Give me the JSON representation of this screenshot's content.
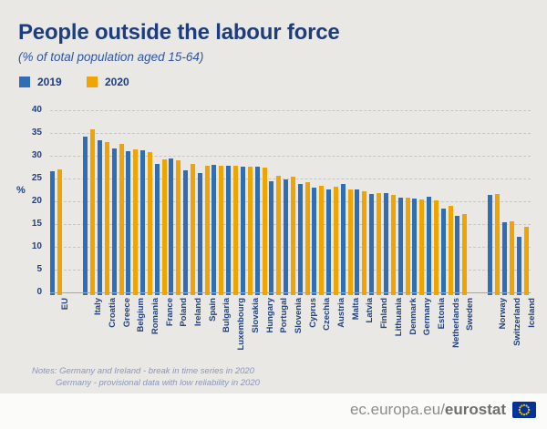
{
  "title": "People outside the labour force",
  "subtitle": "(% of total population aged 15-64)",
  "legend": [
    {
      "label": "2019",
      "color": "#2f6db5"
    },
    {
      "label": "2020",
      "color": "#f0a402"
    }
  ],
  "chart_data": {
    "type": "bar",
    "title": "People outside the labour force",
    "subtitle": "(% of total population aged 15-64)",
    "xlabel": "",
    "ylabel": "%",
    "ylim": [
      0,
      40
    ],
    "ytick_step": 5,
    "grid": "horizontal-dashed",
    "legend_position": "top-left",
    "categories": [
      "EU",
      "Italy",
      "Croatia",
      "Greece",
      "Belgium",
      "Romania",
      "France",
      "Poland",
      "Ireland",
      "Spain",
      "Bulgaria",
      "Luxembourg",
      "Slovakia",
      "Hungary",
      "Portugal",
      "Slovenia",
      "Cyprus",
      "Czechia",
      "Austria",
      "Malta",
      "Latvia",
      "Finland",
      "Lithuania",
      "Denmark",
      "Germany",
      "Estonia",
      "Netherlands",
      "Sweden",
      "Norway",
      "Switzerland",
      "Iceland"
    ],
    "group_gaps_after": [
      "EU",
      "Sweden"
    ],
    "series": [
      {
        "name": "2019",
        "color": "#2f6db5",
        "values": [
          26.6,
          34.3,
          33.5,
          31.7,
          31.0,
          31.3,
          28.3,
          29.4,
          26.8,
          26.2,
          28.0,
          27.9,
          27.6,
          27.7,
          24.5,
          24.8,
          23.9,
          23.1,
          22.6,
          23.9,
          22.7,
          21.7,
          21.9,
          20.8,
          20.6,
          21.0,
          18.5,
          16.9,
          21.5,
          15.5,
          12.3
        ]
      },
      {
        "name": "2020",
        "color": "#f0a402",
        "values": [
          27.1,
          35.9,
          33.0,
          32.6,
          31.4,
          30.8,
          29.3,
          29.1,
          28.3,
          27.8,
          27.8,
          27.8,
          27.7,
          27.4,
          25.6,
          25.5,
          24.2,
          23.4,
          23.3,
          22.6,
          22.3,
          21.8,
          21.4,
          20.9,
          20.5,
          20.2,
          19.0,
          17.2,
          21.6,
          15.7,
          14.5
        ]
      }
    ]
  },
  "notes": {
    "line1": "Notes: Germany and Ireland - break in time series in 2020",
    "line2": "Germany - provisional data with low reliability in 2020"
  },
  "footer": {
    "url_prefix": "ec.europa.eu/",
    "url_bold": "eurostat"
  },
  "colors": {
    "background": "#e9e8e5",
    "title": "#1e3d7d",
    "bar_2019": "#2f6db5",
    "bar_2020": "#f0a402",
    "axis_text": "#24427f",
    "notes_text": "#8b95ba",
    "footer_bg": "#fbfbf9",
    "eu_flag_blue": "#003399",
    "eu_flag_stars": "#ffcc00"
  }
}
